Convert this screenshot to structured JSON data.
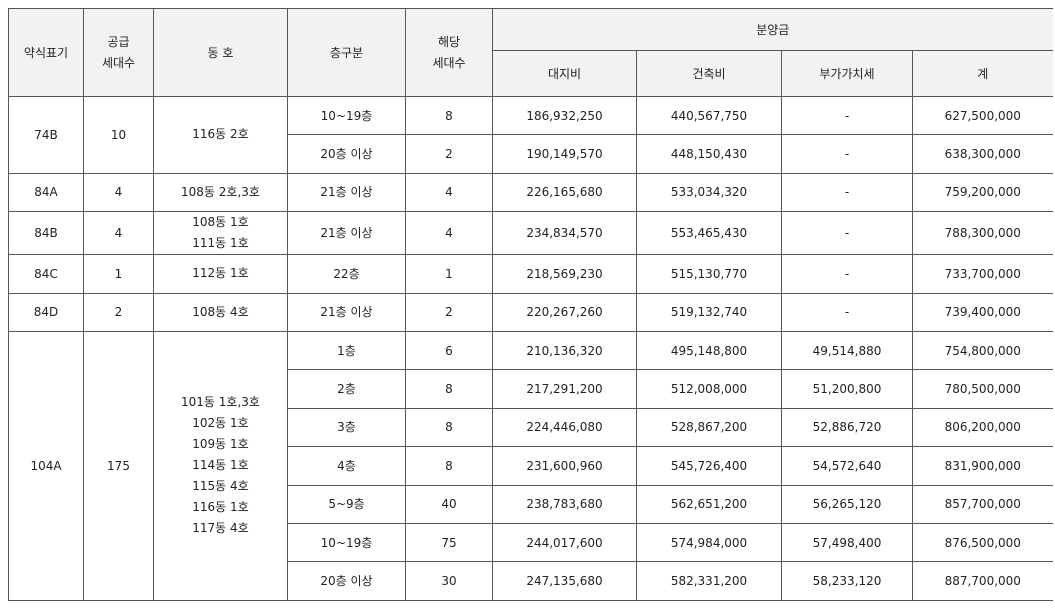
{
  "headers": {
    "type": "약식표기",
    "supply": "공급\n세대수",
    "supply_lines": [
      "공급",
      "세대수"
    ],
    "dongho": "동 호",
    "floor": "층구분",
    "units_lines": [
      "해당",
      "세대수"
    ],
    "price_group": "분양금",
    "land": "대지비",
    "building": "건축비",
    "vat": "부가가치세",
    "total": "계"
  },
  "groups": [
    {
      "type": "74B",
      "supply": "10",
      "dongho": [
        "116동 2호"
      ],
      "rows": [
        {
          "floor": "10~19층",
          "units": "8",
          "land": "186,932,250",
          "building": "440,567,750",
          "vat": "-",
          "total": "627,500,000"
        },
        {
          "floor": "20층 이상",
          "units": "2",
          "land": "190,149,570",
          "building": "448,150,430",
          "vat": "-",
          "total": "638,300,000"
        }
      ]
    },
    {
      "type": "84A",
      "supply": "4",
      "dongho": [
        "108동 2호,3호"
      ],
      "rows": [
        {
          "floor": "21층 이상",
          "units": "4",
          "land": "226,165,680",
          "building": "533,034,320",
          "vat": "-",
          "total": "759,200,000"
        }
      ]
    },
    {
      "type": "84B",
      "supply": "4",
      "dongho": [
        "108동 1호",
        "111동 1호"
      ],
      "rows": [
        {
          "floor": "21층 이상",
          "units": "4",
          "land": "234,834,570",
          "building": "553,465,430",
          "vat": "-",
          "total": "788,300,000"
        }
      ]
    },
    {
      "type": "84C",
      "supply": "1",
      "dongho": [
        "112동 1호"
      ],
      "rows": [
        {
          "floor": "22층",
          "units": "1",
          "land": "218,569,230",
          "building": "515,130,770",
          "vat": "-",
          "total": "733,700,000"
        }
      ]
    },
    {
      "type": "84D",
      "supply": "2",
      "dongho": [
        "108동 4호"
      ],
      "rows": [
        {
          "floor": "21층 이상",
          "units": "2",
          "land": "220,267,260",
          "building": "519,132,740",
          "vat": "-",
          "total": "739,400,000"
        }
      ]
    },
    {
      "type": "104A",
      "supply": "175",
      "dongho": [
        "101동 1호,3호",
        "102동 1호",
        "109동 1호",
        "114동 1호",
        "115동 4호",
        "116동 1호",
        "117동 4호"
      ],
      "rows": [
        {
          "floor": "1층",
          "units": "6",
          "land": "210,136,320",
          "building": "495,148,800",
          "vat": "49,514,880",
          "total": "754,800,000"
        },
        {
          "floor": "2층",
          "units": "8",
          "land": "217,291,200",
          "building": "512,008,000",
          "vat": "51,200,800",
          "total": "780,500,000"
        },
        {
          "floor": "3층",
          "units": "8",
          "land": "224,446,080",
          "building": "528,867,200",
          "vat": "52,886,720",
          "total": "806,200,000"
        },
        {
          "floor": "4층",
          "units": "8",
          "land": "231,600,960",
          "building": "545,726,400",
          "vat": "54,572,640",
          "total": "831,900,000"
        },
        {
          "floor": "5~9층",
          "units": "40",
          "land": "238,783,680",
          "building": "562,651,200",
          "vat": "56,265,120",
          "total": "857,700,000"
        },
        {
          "floor": "10~19층",
          "units": "75",
          "land": "244,017,600",
          "building": "574,984,000",
          "vat": "57,498,400",
          "total": "876,500,000"
        },
        {
          "floor": "20층 이상",
          "units": "30",
          "land": "247,135,680",
          "building": "582,331,200",
          "vat": "58,233,120",
          "total": "887,700,000"
        }
      ]
    }
  ]
}
